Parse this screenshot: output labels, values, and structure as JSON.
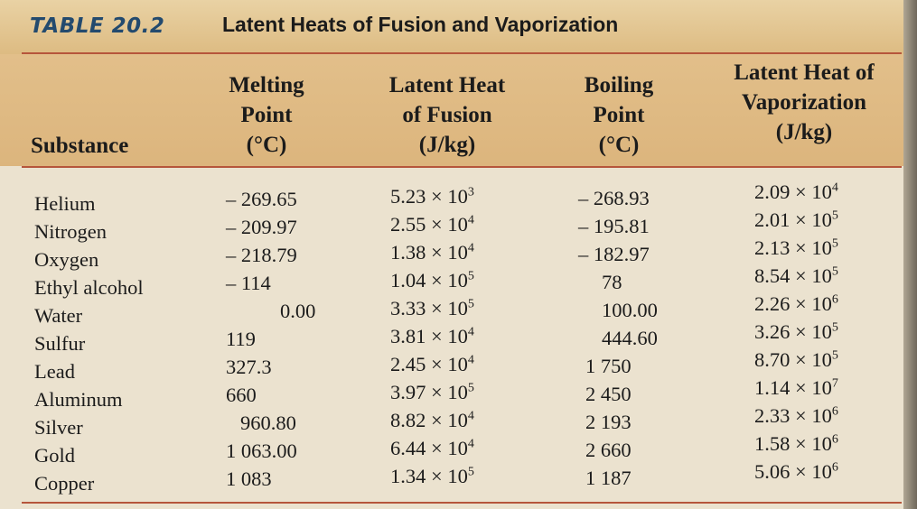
{
  "table": {
    "number": "TABLE 20.2",
    "title": "Latent Heats of Fusion and Vaporization",
    "headers": {
      "substance": "Substance",
      "melting_point": [
        "Melting",
        "Point",
        "(°C)"
      ],
      "latent_heat_fusion": [
        "Latent Heat",
        "of Fusion",
        "(J/kg)"
      ],
      "boiling_point": [
        "Boiling",
        "Point",
        "(°C)"
      ],
      "latent_heat_vaporization": [
        "Latent Heat of",
        "Vaporization",
        "(J/kg)"
      ]
    },
    "rows": [
      {
        "substance": "Helium",
        "melting_point": "– 269.65",
        "fusion": {
          "m": "5.23 × 10",
          "e": "3"
        },
        "boiling_point": "– 268.93",
        "vaporization": {
          "m": "2.09 × 10",
          "e": "4"
        }
      },
      {
        "substance": "Nitrogen",
        "melting_point": "– 209.97",
        "fusion": {
          "m": "2.55 × 10",
          "e": "4"
        },
        "boiling_point": "– 195.81",
        "vaporization": {
          "m": "2.01 × 10",
          "e": "5"
        }
      },
      {
        "substance": "Oxygen",
        "melting_point": "– 218.79",
        "fusion": {
          "m": "1.38 × 10",
          "e": "4"
        },
        "boiling_point": "– 182.97",
        "vaporization": {
          "m": "2.13 × 10",
          "e": "5"
        }
      },
      {
        "substance": "Ethyl alcohol",
        "melting_point": "– 114",
        "fusion": {
          "m": "1.04 × 10",
          "e": "5"
        },
        "boiling_point": "78",
        "vaporization": {
          "m": "8.54 × 10",
          "e": "5"
        }
      },
      {
        "substance": "Water",
        "melting_point": "0.00",
        "fusion": {
          "m": "3.33 × 10",
          "e": "5"
        },
        "boiling_point": "100.00",
        "vaporization": {
          "m": "2.26 × 10",
          "e": "6"
        }
      },
      {
        "substance": "Sulfur",
        "melting_point": "119",
        "fusion": {
          "m": "3.81 × 10",
          "e": "4"
        },
        "boiling_point": "444.60",
        "vaporization": {
          "m": "3.26 × 10",
          "e": "5"
        }
      },
      {
        "substance": "Lead",
        "melting_point": "327.3",
        "fusion": {
          "m": "2.45 × 10",
          "e": "4"
        },
        "boiling_point": "1 750",
        "vaporization": {
          "m": "8.70 × 10",
          "e": "5"
        }
      },
      {
        "substance": "Aluminum",
        "melting_point": "660",
        "fusion": {
          "m": "3.97 × 10",
          "e": "5"
        },
        "boiling_point": "2 450",
        "vaporization": {
          "m": "1.14 × 10",
          "e": "7"
        }
      },
      {
        "substance": "Silver",
        "melting_point": "960.80",
        "fusion": {
          "m": "8.82 × 10",
          "e": "4"
        },
        "boiling_point": "2 193",
        "vaporization": {
          "m": "2.33 × 10",
          "e": "6"
        }
      },
      {
        "substance": "Gold",
        "melting_point": "1 063.00",
        "fusion": {
          "m": "6.44 × 10",
          "e": "4"
        },
        "boiling_point": "2 660",
        "vaporization": {
          "m": "1.58 × 10",
          "e": "6"
        }
      },
      {
        "substance": "Copper",
        "melting_point": "1 083",
        "fusion": {
          "m": "1.34 × 10",
          "e": "5"
        },
        "boiling_point": "1 187",
        "vaporization": {
          "m": "5.06 × 10",
          "e": "6"
        }
      }
    ]
  }
}
